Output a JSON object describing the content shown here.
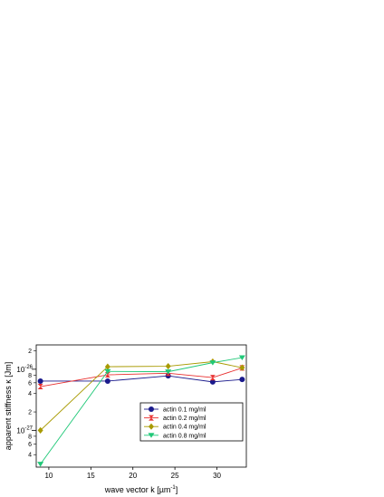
{
  "chart_data": {
    "type": "line",
    "xlabel": "wave vector k [µm",
    "xlabel_sup": "-1",
    "xlabel_end": "]",
    "ylabel": "apparent stiffness κ [Jm]",
    "xlim": [
      8.5,
      33.5
    ],
    "ylim": [
      2.5e-28,
      2.5e-26
    ],
    "yscale": "log",
    "x_ticks": [
      "10",
      "15",
      "20",
      "25",
      "30"
    ],
    "y_major_ticks": [
      {
        "value": 1e-27,
        "base": "10",
        "exp": "-27"
      },
      {
        "value": 1e-26,
        "base": "10",
        "exp": "-26"
      }
    ],
    "y_minor_ticks": [
      {
        "value": 4e-28,
        "label": "4"
      },
      {
        "value": 6e-28,
        "label": "6"
      },
      {
        "value": 8e-28,
        "label": "8"
      },
      {
        "value": 2e-27,
        "label": "2"
      },
      {
        "value": 4e-27,
        "label": "4"
      },
      {
        "value": 6e-27,
        "label": "6"
      },
      {
        "value": 8e-27,
        "label": "8"
      },
      {
        "value": 2e-26,
        "label": "2"
      }
    ],
    "legend_position": "bottom-right",
    "series": [
      {
        "name": "actin 0.1 mg/ml",
        "color": "#1a1a8c",
        "marker": "circle",
        "x": [
          9,
          17,
          24.2,
          29.5,
          33
        ],
        "y": [
          6.4e-27,
          6.4e-27,
          7.8e-27,
          6.2e-27,
          6.8e-27
        ]
      },
      {
        "name": "actin 0.2 mg/ml",
        "color": "#e83030",
        "marker": "hourglass",
        "x": [
          9,
          17,
          24.2,
          29.5,
          33
        ],
        "y": [
          5.2e-27,
          8.1e-27,
          8.6e-27,
          7.3e-27,
          1.05e-26
        ]
      },
      {
        "name": "actin 0.4 mg/ml",
        "color": "#a89a00",
        "marker": "diamond",
        "x": [
          9,
          17,
          24.2,
          29.5,
          33
        ],
        "y": [
          1e-27,
          1.1e-26,
          1.12e-26,
          1.33e-26,
          1.06e-26
        ]
      },
      {
        "name": "actin 0.8 mg/ml",
        "color": "#20c878",
        "marker": "triangle-down",
        "x": [
          9,
          17,
          24.2,
          29.5,
          33
        ],
        "y": [
          2.8e-28,
          9.2e-27,
          9.1e-27,
          1.28e-26,
          1.55e-26
        ]
      }
    ]
  }
}
